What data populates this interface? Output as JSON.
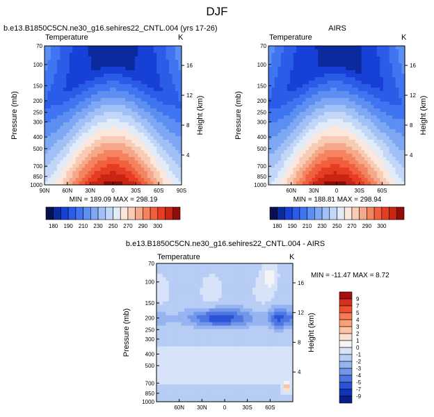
{
  "page": {
    "title": "DJF"
  },
  "chart_data": [
    {
      "type": "heatmap",
      "title": "b.e13.B1850C5CN.ne30_g16.sehires22_CNTL.004 (yrs 17-26)",
      "left_string": "Temperature",
      "right_string": "K",
      "ylabel": "Pressure (mb)",
      "ylabel_right": "Height (km)",
      "y_ticks": [
        "70",
        "100",
        "150",
        "200",
        "250",
        "300",
        "400",
        "500",
        "700",
        "850",
        "1000"
      ],
      "x_ticks": [
        "90N",
        "60N",
        "30N",
        "0",
        "30S",
        "60S",
        "90S"
      ],
      "height_ticks": [
        "16",
        "12",
        "8",
        "4"
      ],
      "stats": "MIN = 189.09   MAX = 298.19",
      "min": 189.09,
      "max": 298.19,
      "xlim": [
        90,
        -90
      ],
      "ylim": [
        1000,
        70
      ]
    },
    {
      "type": "heatmap",
      "title": "AIRS",
      "left_string": "Temperature",
      "right_string": "K",
      "ylabel": "Pressure (mb)",
      "ylabel_right": "Height (km)",
      "y_ticks": [
        "70",
        "100",
        "150",
        "200",
        "250",
        "300",
        "400",
        "500",
        "700",
        "850",
        "1000"
      ],
      "x_ticks": [
        "60N",
        "30N",
        "0",
        "30S",
        "60S"
      ],
      "height_ticks": [
        "16",
        "12",
        "8",
        "4"
      ],
      "stats": "MIN = 188.81   MAX = 298.94",
      "min": 188.81,
      "max": 298.94,
      "xlim": [
        90,
        -90
      ],
      "ylim": [
        1000,
        70
      ]
    },
    {
      "type": "heatmap",
      "title": "b.e13.B1850C5CN.ne30_g16.sehires22_CNTL.004 - AIRS",
      "left_string": "Temperature",
      "right_string": "K",
      "ylabel": "Pressure (mb)",
      "ylabel_right": "Height (km)",
      "y_ticks": [
        "70",
        "100",
        "150",
        "200",
        "250",
        "300",
        "400",
        "500",
        "700",
        "850",
        "1000"
      ],
      "x_ticks": [
        "60N",
        "30N",
        "0",
        "30S",
        "60S"
      ],
      "height_ticks": [
        "16",
        "12",
        "8",
        "4"
      ],
      "stats": "MIN = -11.47   MAX =   8.72",
      "min": -11.47,
      "max": 8.72,
      "xlim": [
        90,
        -90
      ],
      "ylim": [
        1000,
        70
      ]
    }
  ],
  "colorbar_abs": {
    "labels": [
      "180",
      "190",
      "210",
      "230",
      "250",
      "270",
      "290",
      "300"
    ],
    "colors": [
      "#08104d",
      "#0b2a9e",
      "#1640d6",
      "#2a5ce8",
      "#3f75f0",
      "#5d8ff2",
      "#7ea8f4",
      "#a0c0f6",
      "#c2d6f8",
      "#e2ebf8",
      "#fbe7dc",
      "#f8cbb4",
      "#f6a98a",
      "#f4845f",
      "#f0603e",
      "#e63d22",
      "#c92414",
      "#8f0d06"
    ]
  },
  "colorbar_diff": {
    "labels": [
      "9",
      "7",
      "5",
      "4",
      "3",
      "2",
      "1",
      "0",
      "-1",
      "-2",
      "-3",
      "-4",
      "-5",
      "-7",
      "-9"
    ],
    "colors": [
      "#a50f0f",
      "#d7301f",
      "#ee5030",
      "#f77a52",
      "#f9a07b",
      "#fbc2a4",
      "#fce0cf",
      "#f4f4f4",
      "#d6e3f8",
      "#b7cdf5",
      "#96b4f0",
      "#7196ea",
      "#4d76e3",
      "#2a54d6",
      "#1034b8",
      "#0a1f86"
    ]
  }
}
